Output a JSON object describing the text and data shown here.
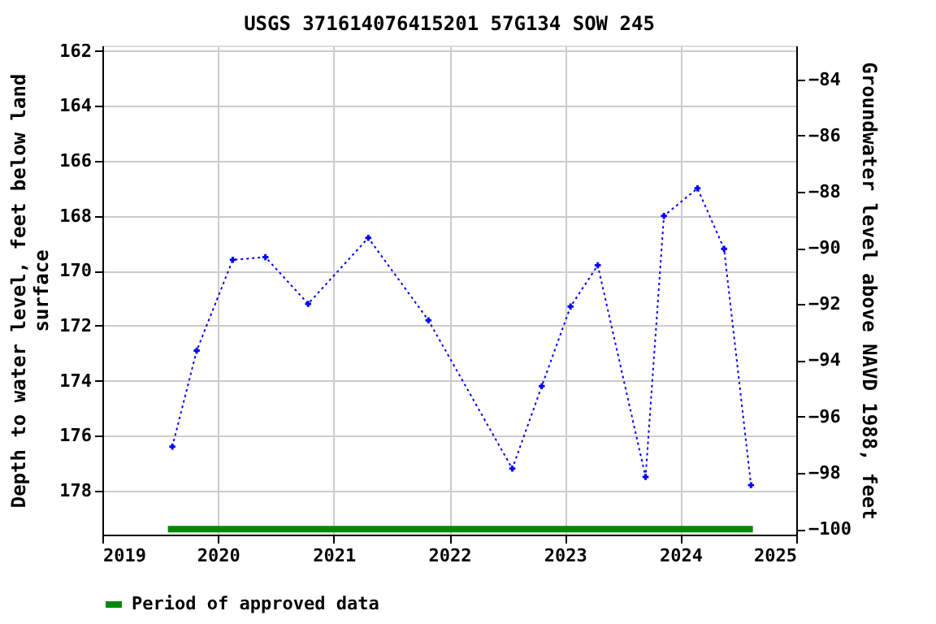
{
  "chart_data": {
    "type": "line",
    "title": "USGS 371614076415201 57G134 SOW 245",
    "ylabel": "Depth to water level, feet below land surface",
    "y2label": "Groundwater level above NAVD 1988, feet",
    "x": [
      "2019-08-10",
      "2019-10-26",
      "2020-02-17",
      "2020-05-30",
      "2020-10-12",
      "2021-04-20",
      "2021-10-27",
      "2022-07-19",
      "2022-10-20",
      "2023-01-19",
      "2023-04-15",
      "2023-09-13",
      "2023-11-10",
      "2024-02-24",
      "2024-05-18",
      "2024-08-11"
    ],
    "series": [
      {
        "color": "#0000ff",
        "marker": "cross",
        "line_style": "dotted",
        "values": [
          176.4,
          172.9,
          169.6,
          169.5,
          171.2,
          168.8,
          171.8,
          177.2,
          174.2,
          171.3,
          169.8,
          177.5,
          168.0,
          167.0,
          169.2,
          177.8
        ]
      },
      {
        "name": "Period of approved data",
        "color": "#008800",
        "marker": "none",
        "line_style": "solid",
        "x": [
          "2019-07-27",
          "2024-08-17"
        ],
        "values": [
          179.4,
          179.4
        ]
      }
    ],
    "xlim": [
      "2019",
      "2025"
    ],
    "xticks": [
      "2019",
      "2020",
      "2021",
      "2022",
      "2023",
      "2024",
      "2025"
    ],
    "ylim": [
      179.6,
      161.8
    ],
    "yticks": [
      162,
      164,
      166,
      168,
      170,
      172,
      174,
      176,
      178
    ],
    "y2lim": [
      -100.2,
      -82.8
    ],
    "y2ticks": [
      -100,
      -98,
      -96,
      -94,
      -92,
      -90,
      -88,
      -86,
      -84
    ],
    "grid": true,
    "legend": "bottom"
  }
}
